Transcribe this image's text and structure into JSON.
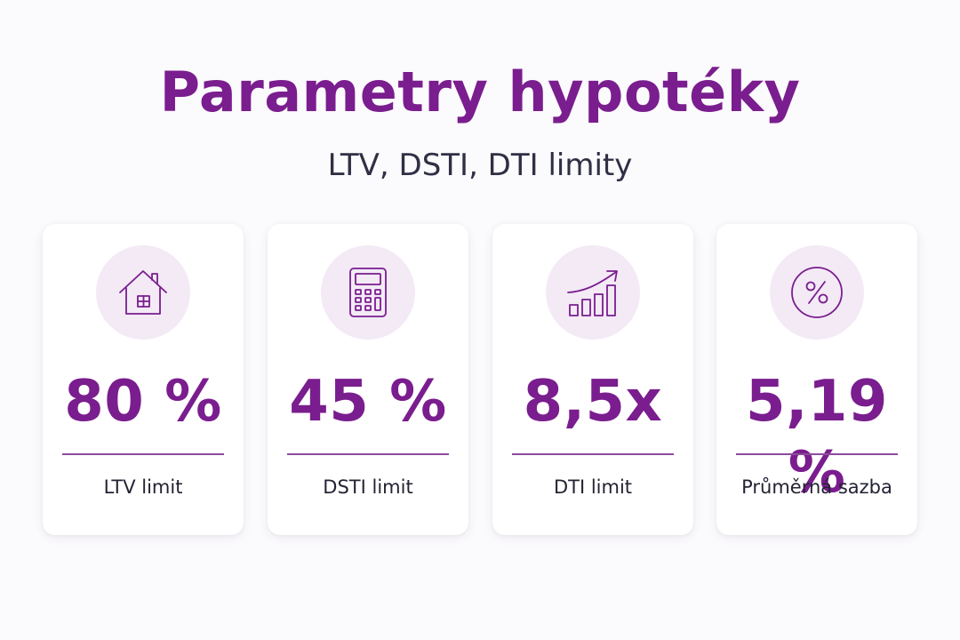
{
  "header": {
    "title": "Parametry hypotéky",
    "subtitle": "LTV, DSTI, DTI limity"
  },
  "colors": {
    "accent": "#7a1d8e",
    "icon_circle": "#f3eaf6",
    "divider": "#8e4a9e"
  },
  "cards": [
    {
      "icon": "house-icon",
      "value": "80 %",
      "label": "LTV limit"
    },
    {
      "icon": "calculator-icon",
      "value": "45 %",
      "label": "DSTI limit"
    },
    {
      "icon": "growth-chart-icon",
      "value": "8,5x",
      "label": "DTI limit"
    },
    {
      "icon": "percent-icon",
      "value": "5,19 %",
      "label": "Průměrná sazba"
    }
  ]
}
